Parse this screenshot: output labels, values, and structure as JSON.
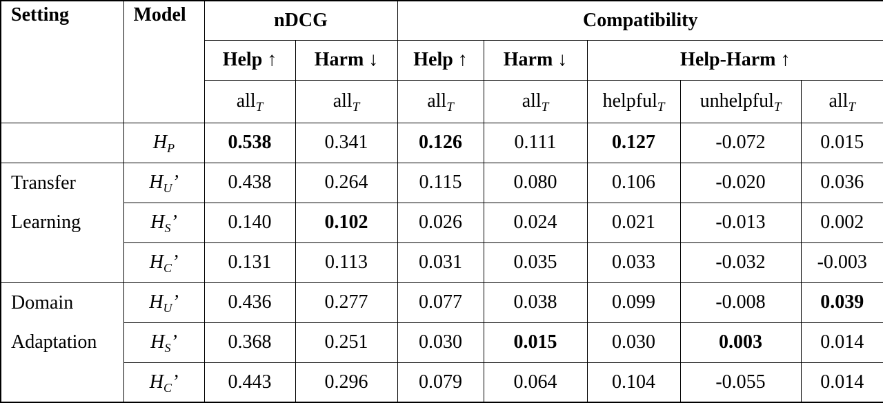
{
  "table": {
    "header": {
      "setting": "Setting",
      "model": "Model",
      "ndcg": "nDCG",
      "compatibility": "Compatibility",
      "metrics": [
        "Help ↑",
        "Harm ↓",
        "Help ↑",
        "Harm ↓",
        "Help-Harm ↑"
      ],
      "subsets": [
        {
          "text": "all",
          "sub": "T"
        },
        {
          "text": "all",
          "sub": "T"
        },
        {
          "text": "all",
          "sub": "T"
        },
        {
          "text": "all",
          "sub": "T"
        },
        {
          "text": "helpful",
          "sub": "T"
        },
        {
          "text": "unhelpful",
          "sub": "T"
        },
        {
          "text": "all",
          "sub": "T"
        }
      ]
    },
    "groups": [
      {
        "rows": [
          {
            "model": {
              "base": "H",
              "sub": "P"
            },
            "values": [
              "0.538",
              "0.341",
              "0.126",
              "0.111",
              "0.127",
              "-0.072",
              "0.015"
            ],
            "bold": [
              0,
              2,
              4
            ]
          }
        ]
      },
      {
        "setting": [
          "Transfer",
          "Learning"
        ],
        "rows": [
          {
            "model": {
              "base": "H",
              "sub": "U",
              "prime": "’"
            },
            "values": [
              "0.438",
              "0.264",
              "0.115",
              "0.080",
              "0.106",
              "-0.020",
              "0.036"
            ],
            "bold": []
          },
          {
            "model": {
              "base": "H",
              "sub": "S",
              "prime": "’"
            },
            "values": [
              "0.140",
              "0.102",
              "0.026",
              "0.024",
              "0.021",
              "-0.013",
              "0.002"
            ],
            "bold": [
              1
            ]
          },
          {
            "model": {
              "base": "H",
              "sub": "C",
              "prime": "’"
            },
            "values": [
              "0.131",
              "0.113",
              "0.031",
              "0.035",
              "0.033",
              "-0.032",
              "-0.003"
            ],
            "bold": []
          }
        ]
      },
      {
        "setting": [
          "Domain",
          "Adaptation"
        ],
        "rows": [
          {
            "model": {
              "base": "H",
              "sub": "U",
              "prime": "’"
            },
            "values": [
              "0.436",
              "0.277",
              "0.077",
              "0.038",
              "0.099",
              "-0.008",
              "0.039"
            ],
            "bold": [
              6
            ]
          },
          {
            "model": {
              "base": "H",
              "sub": "S",
              "prime": "’"
            },
            "values": [
              "0.368",
              "0.251",
              "0.030",
              "0.015",
              "0.030",
              "0.003",
              "0.014"
            ],
            "bold": [
              3,
              5
            ]
          },
          {
            "model": {
              "base": "H",
              "sub": "C",
              "prime": "’"
            },
            "values": [
              "0.443",
              "0.296",
              "0.079",
              "0.064",
              "0.104",
              "-0.055",
              "0.014"
            ],
            "bold": []
          }
        ]
      }
    ]
  }
}
